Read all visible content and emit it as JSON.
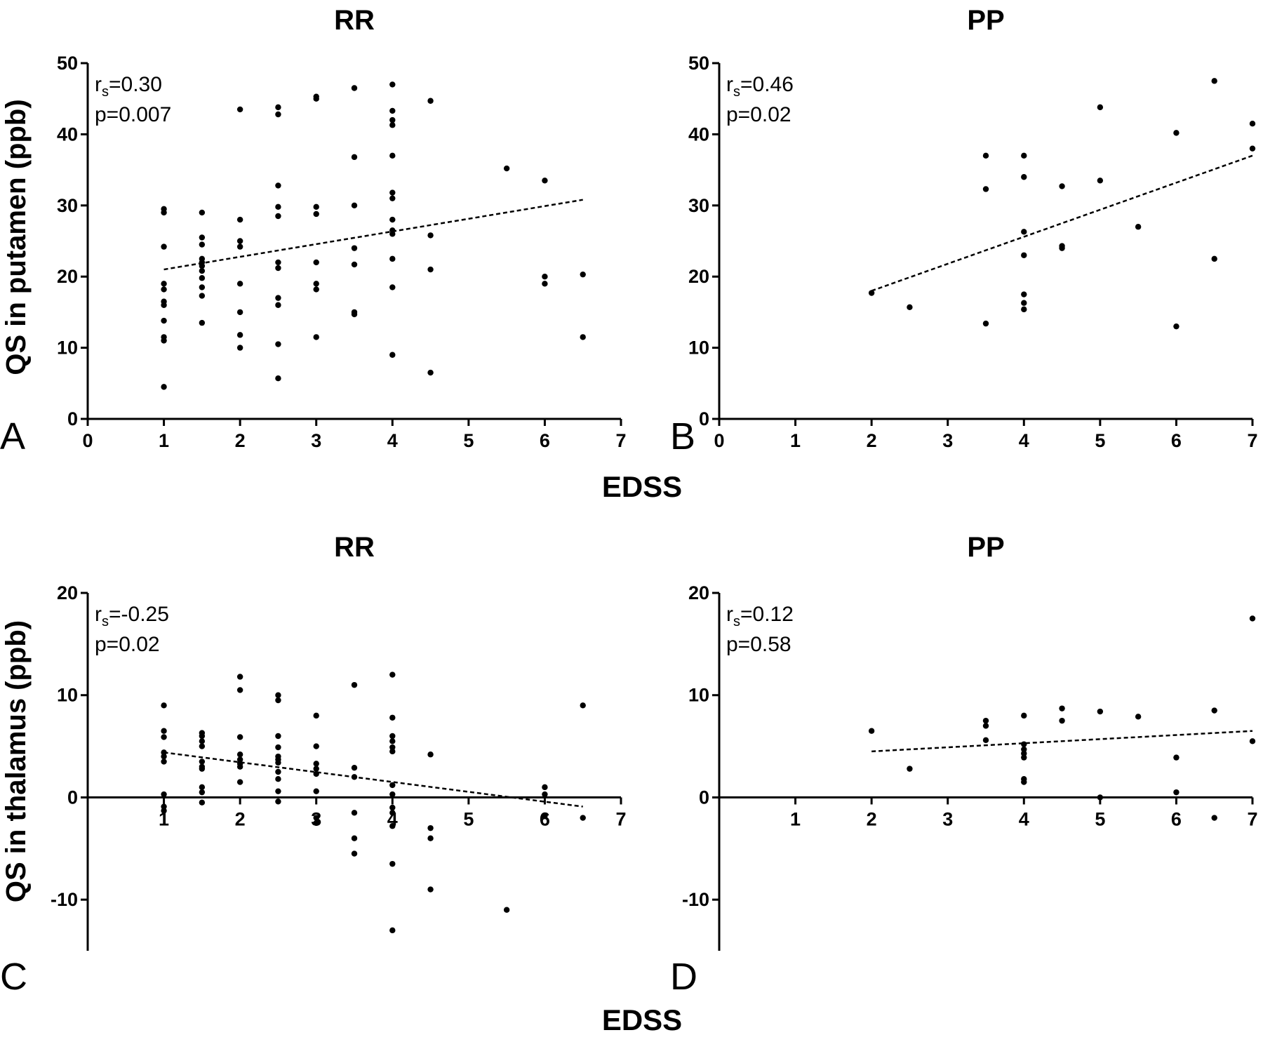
{
  "figure": {
    "xlabel_top": "EDSS",
    "xlabel_bottom": "EDSS",
    "ylabel_top": "QS in putamen (ppb)",
    "ylabel_bottom": "QS in thalamus (ppb)"
  },
  "chart_data": [
    {
      "id": "A",
      "type": "scatter",
      "title": "RR",
      "panel_letter": "A",
      "xlabel": "EDSS",
      "ylabel": "QS in putamen (ppb)",
      "xlim": [
        0,
        7
      ],
      "ylim": [
        0,
        50
      ],
      "xticks": [
        "0",
        "1",
        "2",
        "3",
        "4",
        "5",
        "6",
        "7"
      ],
      "yticks": [
        "0",
        "10",
        "20",
        "30",
        "40",
        "50"
      ],
      "stat_r": "0.30",
      "stat_p": "p=0.007",
      "stat_r_sub": "s",
      "stat_r_prefix": "r",
      "trend": {
        "x": [
          1,
          6.5
        ],
        "y": [
          21.0,
          30.8
        ]
      },
      "points": [
        [
          1,
          29.5
        ],
        [
          1,
          29.0
        ],
        [
          1,
          24.2
        ],
        [
          1,
          19.0
        ],
        [
          1,
          18.2
        ],
        [
          1,
          16.5
        ],
        [
          1,
          16.0
        ],
        [
          1,
          13.8
        ],
        [
          1,
          11.5
        ],
        [
          1,
          11.0
        ],
        [
          1,
          4.5
        ],
        [
          1.5,
          29.0
        ],
        [
          1.5,
          25.5
        ],
        [
          1.5,
          24.5
        ],
        [
          1.5,
          22.5
        ],
        [
          1.5,
          22.0
        ],
        [
          1.5,
          21.5
        ],
        [
          1.5,
          20.8
        ],
        [
          1.5,
          19.8
        ],
        [
          1.5,
          18.5
        ],
        [
          1.5,
          17.3
        ],
        [
          1.5,
          13.5
        ],
        [
          2,
          43.5
        ],
        [
          2,
          28.0
        ],
        [
          2,
          25.0
        ],
        [
          2,
          24.2
        ],
        [
          2,
          19.0
        ],
        [
          2,
          15.0
        ],
        [
          2,
          11.8
        ],
        [
          2,
          10.0
        ],
        [
          2.5,
          43.8
        ],
        [
          2.5,
          42.8
        ],
        [
          2.5,
          32.8
        ],
        [
          2.5,
          29.8
        ],
        [
          2.5,
          28.5
        ],
        [
          2.5,
          22.0
        ],
        [
          2.5,
          21.2
        ],
        [
          2.5,
          17.0
        ],
        [
          2.5,
          16.0
        ],
        [
          2.5,
          10.5
        ],
        [
          2.5,
          5.7
        ],
        [
          3,
          45.3
        ],
        [
          3,
          45.0
        ],
        [
          3,
          29.8
        ],
        [
          3,
          28.8
        ],
        [
          3,
          22.0
        ],
        [
          3,
          19.0
        ],
        [
          3,
          18.2
        ],
        [
          3,
          11.5
        ],
        [
          3.5,
          46.5
        ],
        [
          3.5,
          36.8
        ],
        [
          3.5,
          30.0
        ],
        [
          3.5,
          24.0
        ],
        [
          3.5,
          21.7
        ],
        [
          3.5,
          15.0
        ],
        [
          3.5,
          14.7
        ],
        [
          4,
          47.0
        ],
        [
          4,
          43.3
        ],
        [
          4,
          42.0
        ],
        [
          4,
          41.3
        ],
        [
          4,
          37.0
        ],
        [
          4,
          31.8
        ],
        [
          4,
          31.0
        ],
        [
          4,
          28.0
        ],
        [
          4,
          26.5
        ],
        [
          4,
          26.0
        ],
        [
          4,
          22.5
        ],
        [
          4,
          18.5
        ],
        [
          4,
          9.0
        ],
        [
          4.5,
          44.7
        ],
        [
          4.5,
          25.8
        ],
        [
          4.5,
          21.0
        ],
        [
          4.5,
          6.5
        ],
        [
          5.5,
          35.2
        ],
        [
          6,
          33.5
        ],
        [
          6,
          20.0
        ],
        [
          6,
          19.0
        ],
        [
          6.5,
          20.3
        ],
        [
          6.5,
          11.5
        ]
      ]
    },
    {
      "id": "B",
      "type": "scatter",
      "title": "PP",
      "panel_letter": "B",
      "xlabel": "EDSS",
      "ylabel": "QS in putamen (ppb)",
      "xlim": [
        0,
        7
      ],
      "ylim": [
        0,
        50
      ],
      "xticks": [
        "0",
        "1",
        "2",
        "3",
        "4",
        "5",
        "6",
        "7"
      ],
      "yticks": [
        "0",
        "10",
        "20",
        "30",
        "40",
        "50"
      ],
      "stat_r": "0.46",
      "stat_p": "p=0.02",
      "stat_r_sub": "s",
      "stat_r_prefix": "r",
      "trend": {
        "x": [
          2,
          7
        ],
        "y": [
          18.0,
          37.0
        ]
      },
      "points": [
        [
          2,
          17.7
        ],
        [
          2.5,
          15.7
        ],
        [
          3.5,
          37.0
        ],
        [
          3.5,
          32.3
        ],
        [
          3.5,
          13.4
        ],
        [
          4,
          37.0
        ],
        [
          4,
          34.0
        ],
        [
          4,
          26.3
        ],
        [
          4,
          23.0
        ],
        [
          4,
          17.5
        ],
        [
          4,
          16.3
        ],
        [
          4,
          15.4
        ],
        [
          4.5,
          32.7
        ],
        [
          4.5,
          24.3
        ],
        [
          4.5,
          24.0
        ],
        [
          5,
          43.8
        ],
        [
          5,
          33.5
        ],
        [
          5.5,
          27.0
        ],
        [
          6,
          40.2
        ],
        [
          6,
          13.0
        ],
        [
          6.5,
          47.5
        ],
        [
          6.5,
          22.5
        ],
        [
          7,
          41.5
        ],
        [
          7,
          38.0
        ]
      ]
    },
    {
      "id": "C",
      "type": "scatter",
      "title": "RR",
      "panel_letter": "C",
      "xlabel": "EDSS",
      "ylabel": "QS in thalamus (ppb)",
      "xlim": [
        0,
        7
      ],
      "ylim": [
        -15,
        20
      ],
      "xticks": [
        "1",
        "2",
        "3",
        "4",
        "5",
        "6",
        "7"
      ],
      "yticks": [
        "-10",
        "0",
        "10",
        "20"
      ],
      "stat_r": "-0.25",
      "stat_p": "p=0.02",
      "stat_r_sub": "s",
      "stat_r_prefix": "r",
      "trend": {
        "x": [
          1,
          6.5
        ],
        "y": [
          4.4,
          -0.9
        ]
      },
      "points": [
        [
          1,
          9.0
        ],
        [
          1,
          6.5
        ],
        [
          1,
          5.9
        ],
        [
          1,
          4.4
        ],
        [
          1,
          4.0
        ],
        [
          1,
          3.5
        ],
        [
          1,
          0.3
        ],
        [
          1,
          -0.9
        ],
        [
          1,
          -1.3
        ],
        [
          1.5,
          6.3
        ],
        [
          1.5,
          6.0
        ],
        [
          1.5,
          5.5
        ],
        [
          1.5,
          5.0
        ],
        [
          1.5,
          3.5
        ],
        [
          1.5,
          3.0
        ],
        [
          1.5,
          2.8
        ],
        [
          1.5,
          1.0
        ],
        [
          1.5,
          0.5
        ],
        [
          1.5,
          -0.5
        ],
        [
          2,
          11.8
        ],
        [
          2,
          10.5
        ],
        [
          2,
          5.9
        ],
        [
          2,
          4.2
        ],
        [
          2,
          3.7
        ],
        [
          2,
          3.3
        ],
        [
          2,
          3.0
        ],
        [
          2,
          1.5
        ],
        [
          2.5,
          10.0
        ],
        [
          2.5,
          9.5
        ],
        [
          2.5,
          6.0
        ],
        [
          2.5,
          4.9
        ],
        [
          2.5,
          4.0
        ],
        [
          2.5,
          3.7
        ],
        [
          2.5,
          3.4
        ],
        [
          2.5,
          2.5
        ],
        [
          2.5,
          1.8
        ],
        [
          2.5,
          0.6
        ],
        [
          2.5,
          -0.4
        ],
        [
          3,
          8.0
        ],
        [
          3,
          5.0
        ],
        [
          3,
          3.3
        ],
        [
          3,
          2.8
        ],
        [
          3,
          2.3
        ],
        [
          3,
          0.6
        ],
        [
          3,
          -2.0
        ],
        [
          3,
          -2.5
        ],
        [
          3.5,
          11.0
        ],
        [
          3.5,
          2.9
        ],
        [
          3.5,
          2.0
        ],
        [
          3.5,
          -1.5
        ],
        [
          3.5,
          -4.0
        ],
        [
          3.5,
          -5.5
        ],
        [
          4,
          12.0
        ],
        [
          4,
          7.8
        ],
        [
          4,
          6.0
        ],
        [
          4,
          5.5
        ],
        [
          4,
          4.9
        ],
        [
          4,
          4.5
        ],
        [
          4,
          1.2
        ],
        [
          4,
          0.3
        ],
        [
          4,
          -1.0
        ],
        [
          4,
          -1.5
        ],
        [
          4,
          -2.8
        ],
        [
          4,
          -6.5
        ],
        [
          4,
          -13.0
        ],
        [
          4.5,
          4.2
        ],
        [
          4.5,
          -3.0
        ],
        [
          4.5,
          -4.0
        ],
        [
          4.5,
          -9.0
        ],
        [
          5.5,
          -11.0
        ],
        [
          6,
          1.0
        ],
        [
          6,
          0.3
        ],
        [
          6,
          -1.8
        ],
        [
          6.5,
          9.0
        ],
        [
          6.5,
          -2.0
        ]
      ]
    },
    {
      "id": "D",
      "type": "scatter",
      "title": "PP",
      "panel_letter": "D",
      "xlabel": "EDSS",
      "ylabel": "QS in thalamus (ppb)",
      "xlim": [
        0,
        7
      ],
      "ylim": [
        -15,
        20
      ],
      "xticks": [
        "1",
        "2",
        "3",
        "4",
        "5",
        "6",
        "7"
      ],
      "yticks": [
        "-10",
        "0",
        "10",
        "20"
      ],
      "stat_r": "0.12",
      "stat_p": "p=0.58",
      "stat_r_sub": "s",
      "stat_r_prefix": "r",
      "trend": {
        "x": [
          2,
          7
        ],
        "y": [
          4.5,
          6.5
        ]
      },
      "points": [
        [
          2,
          6.5
        ],
        [
          2.5,
          2.8
        ],
        [
          3.5,
          7.5
        ],
        [
          3.5,
          7.0
        ],
        [
          3.5,
          5.6
        ],
        [
          4,
          8.0
        ],
        [
          4,
          5.2
        ],
        [
          4,
          4.7
        ],
        [
          4,
          4.3
        ],
        [
          4,
          3.9
        ],
        [
          4,
          1.8
        ],
        [
          4,
          1.5
        ],
        [
          4.5,
          8.7
        ],
        [
          4.5,
          7.5
        ],
        [
          5,
          8.4
        ],
        [
          5,
          0.0
        ],
        [
          5.5,
          7.9
        ],
        [
          6,
          3.9
        ],
        [
          6,
          0.5
        ],
        [
          6.5,
          8.5
        ],
        [
          6.5,
          -2.0
        ],
        [
          7,
          17.5
        ],
        [
          7,
          5.5
        ]
      ]
    }
  ]
}
